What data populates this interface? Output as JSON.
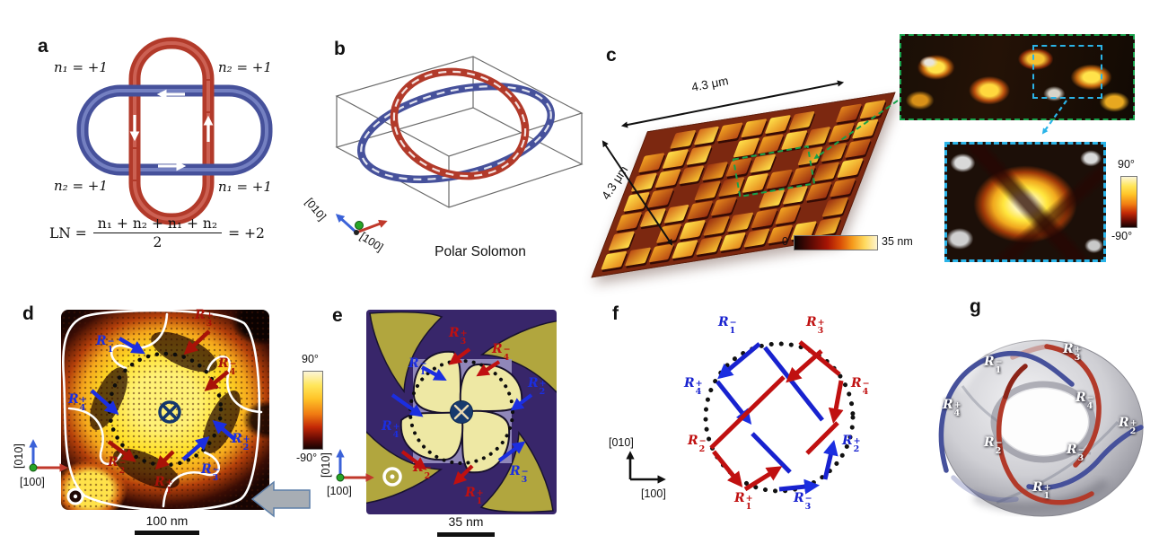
{
  "panels": {
    "a": {
      "letter": "a",
      "labels": {
        "top_left": "n₁ = +1",
        "top_right": "n₂ = +1",
        "bottom_left": "n₂ = +1",
        "bottom_right": "n₁ = +1"
      },
      "equation": {
        "lhs": "LN =",
        "numerator": "n₁ + n₂ + n₁ + n₂",
        "denominator": "2",
        "result": "= +2"
      }
    },
    "b": {
      "letter": "b",
      "caption": "Polar Solomon",
      "axis": {
        "v": "[010]",
        "h": "[100]"
      }
    },
    "c": {
      "letter": "c",
      "dims": {
        "top": "4.3 μm",
        "left": "4.3 μm"
      },
      "height_colorbar": {
        "min": "0",
        "max": "35 nm"
      },
      "phase_colorbar": {
        "max": "90°",
        "min": "-90°"
      }
    },
    "d": {
      "letter": "d",
      "phase_colorbar": {
        "max": "90°",
        "min": "-90°"
      },
      "scalebar": "100 nm",
      "axis": {
        "v": "[010]",
        "h": "[100]"
      },
      "r_labels": [
        {
          "base": "R",
          "sub": "1",
          "sup": "−",
          "color": "#1b2ee0"
        },
        {
          "base": "R",
          "sub": "3",
          "sup": "+",
          "color": "#a81208"
        },
        {
          "base": "R",
          "sub": "4",
          "sup": "−",
          "color": "#a81208"
        },
        {
          "base": "R",
          "sub": "2",
          "sup": "+",
          "color": "#1b2ee0"
        },
        {
          "base": "R",
          "sub": "3",
          "sup": "−",
          "color": "#1b2ee0"
        },
        {
          "base": "R",
          "sub": "1",
          "sup": "+",
          "color": "#a81208"
        },
        {
          "base": "R",
          "sub": "2",
          "sup": "−",
          "color": "#a81208"
        },
        {
          "base": "R",
          "sub": "4",
          "sup": "+",
          "color": "#1b2ee0"
        }
      ]
    },
    "e": {
      "letter": "e",
      "scalebar": "35 nm",
      "axis": {
        "v": "[010]",
        "h": "[100]"
      },
      "r_labels": [
        {
          "base": "R",
          "sub": "1",
          "sup": "−",
          "color": "#1b2ee0"
        },
        {
          "base": "R",
          "sub": "3",
          "sup": "+",
          "color": "#c01010"
        },
        {
          "base": "R",
          "sub": "4",
          "sup": "−",
          "color": "#c01010"
        },
        {
          "base": "R",
          "sub": "2",
          "sup": "+",
          "color": "#1b2ee0"
        },
        {
          "base": "R",
          "sub": "3",
          "sup": "−",
          "color": "#1b2ee0"
        },
        {
          "base": "R",
          "sub": "1",
          "sup": "+",
          "color": "#c01010"
        },
        {
          "base": "R",
          "sub": "2",
          "sup": "−",
          "color": "#c01010"
        },
        {
          "base": "R",
          "sub": "4",
          "sup": "+",
          "color": "#1b2ee0"
        }
      ]
    },
    "f": {
      "letter": "f",
      "axis": {
        "v": "[010]",
        "h": "[100]"
      },
      "r_labels": [
        {
          "base": "R",
          "sub": "1",
          "sup": "−",
          "color": "#1822cf"
        },
        {
          "base": "R",
          "sub": "3",
          "sup": "+",
          "color": "#c01010"
        },
        {
          "base": "R",
          "sub": "4",
          "sup": "−",
          "color": "#c01010"
        },
        {
          "base": "R",
          "sub": "2",
          "sup": "+",
          "color": "#1822cf"
        },
        {
          "base": "R",
          "sub": "3",
          "sup": "−",
          "color": "#1822cf"
        },
        {
          "base": "R",
          "sub": "1",
          "sup": "+",
          "color": "#c01010"
        },
        {
          "base": "R",
          "sub": "2",
          "sup": "−",
          "color": "#c01010"
        },
        {
          "base": "R",
          "sub": "4",
          "sup": "+",
          "color": "#1822cf"
        }
      ]
    },
    "g": {
      "letter": "g",
      "r_labels": [
        {
          "base": "R",
          "sub": "1",
          "sup": "−",
          "color": "#ffffff"
        },
        {
          "base": "R",
          "sub": "3",
          "sup": "+",
          "color": "#ffffff"
        },
        {
          "base": "R",
          "sub": "4",
          "sup": "−",
          "color": "#ffffff"
        },
        {
          "base": "R",
          "sub": "2",
          "sup": "+",
          "color": "#ffffff"
        },
        {
          "base": "R",
          "sub": "3",
          "sup": "−",
          "color": "#ffffff"
        },
        {
          "base": "R",
          "sub": "1",
          "sup": "+",
          "color": "#ffffff"
        },
        {
          "base": "R",
          "sub": "2",
          "sup": "−",
          "color": "#ffffff"
        },
        {
          "base": "R",
          "sub": "4",
          "sup": "+",
          "color": "#ffffff"
        }
      ]
    }
  },
  "colors": {
    "arrow_blue": "#1b2ee0",
    "arrow_red": "#a81208",
    "ring_red": "#b23a2a",
    "ring_blue": "#46519b",
    "green_dash": "#17a24b",
    "cyan_dash": "#2ab4e8"
  }
}
